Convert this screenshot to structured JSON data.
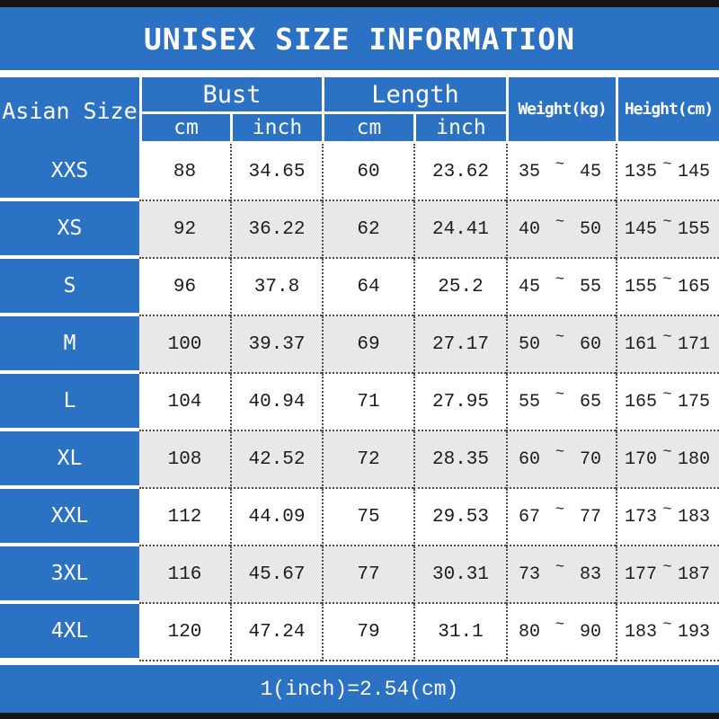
{
  "title": "UNISEX SIZE INFORMATION",
  "colors": {
    "blue": "#2b72c4",
    "alt_row_gray": "#e9e7ea",
    "edge_bar_black": "#141414",
    "text_dark": "#1c1c1c",
    "text_white": "#ffffff"
  },
  "header": {
    "asian_size": "Asian Size",
    "bust": "Bust",
    "length": "Length",
    "cm": "cm",
    "inch": "inch",
    "weight": "Weight(kg)",
    "height": "Height(cm)"
  },
  "labels": {
    "tilde": "~"
  },
  "footer": "1(inch)=2.54(cm)",
  "chart_data": {
    "type": "table",
    "title": "UNISEX SIZE INFORMATION",
    "columns": [
      "Asian Size",
      "Bust cm",
      "Bust inch",
      "Length cm",
      "Length inch",
      "Weight(kg)",
      "Height(cm)"
    ],
    "rows": [
      {
        "size": "XXS",
        "bust_cm": "88",
        "bust_inch": "34.65",
        "length_cm": "60",
        "length_inch": "23.62",
        "weight_min": "35",
        "weight_max": "45",
        "height_min": "135",
        "height_max": "145"
      },
      {
        "size": "XS",
        "bust_cm": "92",
        "bust_inch": "36.22",
        "length_cm": "62",
        "length_inch": "24.41",
        "weight_min": "40",
        "weight_max": "50",
        "height_min": "145",
        "height_max": "155"
      },
      {
        "size": "S",
        "bust_cm": "96",
        "bust_inch": "37.8",
        "length_cm": "64",
        "length_inch": "25.2",
        "weight_min": "45",
        "weight_max": "55",
        "height_min": "155",
        "height_max": "165"
      },
      {
        "size": "M",
        "bust_cm": "100",
        "bust_inch": "39.37",
        "length_cm": "69",
        "length_inch": "27.17",
        "weight_min": "50",
        "weight_max": "60",
        "height_min": "161",
        "height_max": "171"
      },
      {
        "size": "L",
        "bust_cm": "104",
        "bust_inch": "40.94",
        "length_cm": "71",
        "length_inch": "27.95",
        "weight_min": "55",
        "weight_max": "65",
        "height_min": "165",
        "height_max": "175"
      },
      {
        "size": "XL",
        "bust_cm": "108",
        "bust_inch": "42.52",
        "length_cm": "72",
        "length_inch": "28.35",
        "weight_min": "60",
        "weight_max": "70",
        "height_min": "170",
        "height_max": "180"
      },
      {
        "size": "XXL",
        "bust_cm": "112",
        "bust_inch": "44.09",
        "length_cm": "75",
        "length_inch": "29.53",
        "weight_min": "67",
        "weight_max": "77",
        "height_min": "173",
        "height_max": "183"
      },
      {
        "size": "3XL",
        "bust_cm": "116",
        "bust_inch": "45.67",
        "length_cm": "77",
        "length_inch": "30.31",
        "weight_min": "73",
        "weight_max": "83",
        "height_min": "177",
        "height_max": "187"
      },
      {
        "size": "4XL",
        "bust_cm": "120",
        "bust_inch": "47.24",
        "length_cm": "79",
        "length_inch": "31.1",
        "weight_min": "80",
        "weight_max": "90",
        "height_min": "183",
        "height_max": "193"
      }
    ]
  }
}
